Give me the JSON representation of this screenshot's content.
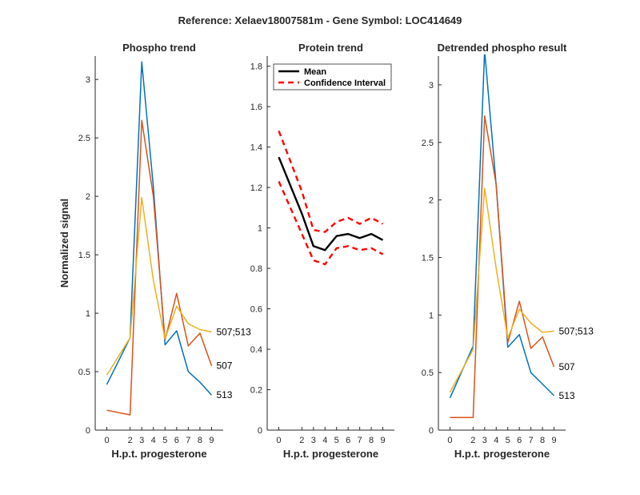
{
  "figure": {
    "suptitle": "Reference:  Xelaev18007581m - Gene Symbol:  LOC414649"
  },
  "colors": {
    "blue": "#0072bd",
    "orange": "#d95319",
    "yellow": "#edb120",
    "black": "#000000",
    "red": "#ff0000"
  },
  "chart_data": [
    {
      "type": "line",
      "title": "Phospho trend",
      "xlabel": "H.p.t. progesterone",
      "ylabel": "Normalized signal",
      "x": [
        0,
        2,
        3,
        4,
        5,
        6,
        7,
        8,
        9
      ],
      "xlim": [
        -1,
        10
      ],
      "ylim": [
        0,
        3.2
      ],
      "xticks": [
        0,
        2,
        3,
        4,
        5,
        6,
        7,
        8,
        9
      ],
      "yticks": [
        0,
        0.5,
        1,
        1.5,
        2,
        2.5,
        3
      ],
      "ytick_labels": [
        "0",
        "0.5",
        "1",
        "1.5",
        "2",
        "2.5",
        "3"
      ],
      "series": [
        {
          "name": "513",
          "color": "#0072bd",
          "values": [
            0.39,
            0.79,
            3.15,
            2.08,
            0.73,
            0.85,
            0.5,
            0.41,
            0.3
          ]
        },
        {
          "name": "507",
          "color": "#d95319",
          "values": [
            0.17,
            0.13,
            2.65,
            2.0,
            0.77,
            1.17,
            0.72,
            0.83,
            0.55
          ]
        },
        {
          "name": "507;513",
          "color": "#edb120",
          "values": [
            0.47,
            0.79,
            1.99,
            1.28,
            0.78,
            1.06,
            0.91,
            0.86,
            0.84
          ]
        }
      ]
    },
    {
      "type": "line",
      "title": "Protein trend",
      "xlabel": "H.p.t. progesterone",
      "ylabel": "",
      "x": [
        0,
        2,
        3,
        4,
        5,
        6,
        7,
        8,
        9
      ],
      "xlim": [
        -1,
        10
      ],
      "ylim": [
        0,
        1.85
      ],
      "xticks": [
        0,
        2,
        3,
        4,
        5,
        6,
        7,
        8,
        9
      ],
      "yticks": [
        0,
        0.2,
        0.4,
        0.6,
        0.8,
        1,
        1.2,
        1.4,
        1.6,
        1.8
      ],
      "ytick_labels": [
        "0",
        "0.2",
        "0.4",
        "0.6",
        "0.8",
        "1",
        "1.2",
        "1.4",
        "1.6",
        "1.8"
      ],
      "legend": {
        "placement": "top-left",
        "entries": [
          "Mean",
          "Confidence Interval"
        ]
      },
      "series": [
        {
          "name": "Mean",
          "color": "#000000",
          "style": "solid",
          "values": [
            1.35,
            1.07,
            0.91,
            0.89,
            0.96,
            0.97,
            0.95,
            0.97,
            0.94
          ]
        },
        {
          "name": "Confidence Interval",
          "color": "#ff0000",
          "style": "dashed",
          "values": [
            1.48,
            1.18,
            0.99,
            0.98,
            1.03,
            1.05,
            1.02,
            1.05,
            1.02
          ]
        },
        {
          "name": "",
          "color": "#ff0000",
          "style": "dashed",
          "values": [
            1.23,
            0.97,
            0.84,
            0.82,
            0.9,
            0.91,
            0.89,
            0.9,
            0.87
          ]
        }
      ]
    },
    {
      "type": "line",
      "title": "Detrended phospho result",
      "xlabel": "H.p.t. progesterone",
      "ylabel": "",
      "x": [
        0,
        2,
        3,
        4,
        5,
        6,
        7,
        8,
        9
      ],
      "xlim": [
        -1,
        10
      ],
      "ylim": [
        0,
        3.25
      ],
      "xticks": [
        0,
        2,
        3,
        4,
        5,
        6,
        7,
        8,
        9
      ],
      "yticks": [
        0,
        0.5,
        1,
        1.5,
        2,
        2.5,
        3
      ],
      "ytick_labels": [
        "0",
        "0.5",
        "1",
        "1.5",
        "2",
        "2.5",
        "3"
      ],
      "series": [
        {
          "name": "513",
          "color": "#0072bd",
          "values": [
            0.28,
            0.73,
            3.3,
            2.12,
            0.72,
            0.83,
            0.5,
            0.4,
            0.3
          ]
        },
        {
          "name": "507",
          "color": "#d95319",
          "values": [
            0.11,
            0.11,
            2.73,
            2.13,
            0.76,
            1.12,
            0.71,
            0.81,
            0.55
          ]
        },
        {
          "name": "507;513",
          "color": "#edb120",
          "values": [
            0.33,
            0.7,
            2.1,
            1.4,
            0.8,
            1.05,
            0.93,
            0.85,
            0.86
          ]
        }
      ]
    }
  ]
}
